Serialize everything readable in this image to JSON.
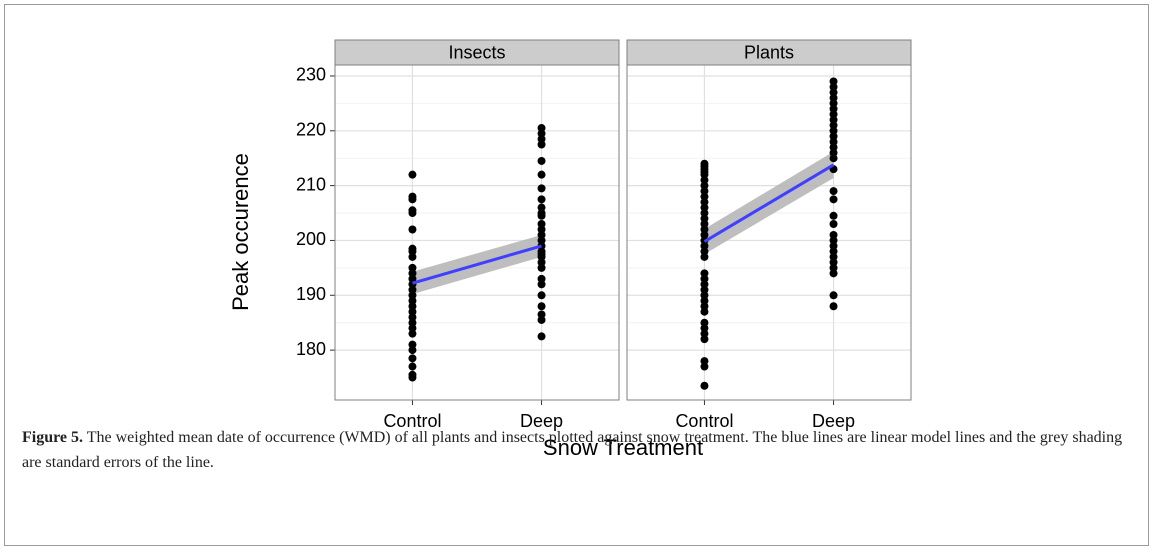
{
  "chart_data": [
    {
      "type": "strip",
      "title": "Insects",
      "categories": [
        "Control",
        "Deep"
      ],
      "points": [
        [
          212,
          208,
          207.5,
          205.5,
          205,
          202,
          198.5,
          198,
          197,
          195,
          194,
          193,
          192,
          191,
          190,
          189,
          188,
          187,
          186,
          185,
          184,
          183,
          181,
          180,
          178.5,
          177,
          175.5,
          175
        ],
        [
          220.5,
          219.5,
          218.5,
          217.5,
          214.5,
          212,
          209.5,
          207.5,
          206,
          205,
          204.5,
          203,
          202,
          201,
          200,
          199,
          198,
          197.5,
          197,
          196,
          195,
          193,
          192,
          190,
          188,
          186.5,
          185.5,
          182.5
        ]
      ],
      "point_color": "#000000",
      "fit": [
        192.2,
        199
      ],
      "se_lower": [
        190.2,
        197
      ],
      "se_upper": [
        194.3,
        201
      ],
      "fit_color": "#3f3fff",
      "se_color": "#b3b3b3",
      "ylim": [
        170.9,
        232
      ],
      "yticks": [
        180,
        190,
        200,
        210,
        220,
        230
      ],
      "show_yticks": true,
      "grid": true
    },
    {
      "type": "strip",
      "title": "Plants",
      "categories": [
        "Control",
        "Deep"
      ],
      "points": [
        [
          214,
          213.5,
          213,
          212.5,
          212,
          211,
          210,
          209,
          208,
          207,
          206,
          205,
          204,
          203,
          202,
          201,
          200,
          199,
          198,
          197,
          194,
          193,
          192,
          191,
          190,
          189,
          188,
          187,
          185,
          184,
          183,
          182,
          178,
          177,
          173.5
        ],
        [
          229,
          228,
          227,
          226,
          225,
          224,
          223,
          222,
          221,
          220,
          219,
          218,
          217,
          216,
          215,
          213,
          209,
          207.5,
          204.5,
          203,
          201,
          200,
          199,
          198,
          197,
          196,
          195,
          194,
          190,
          188
        ]
      ],
      "point_color": "#000000",
      "fit": [
        199.8,
        213.8
      ],
      "se_lower": [
        197.5,
        211.4
      ],
      "se_upper": [
        202.1,
        216.2
      ],
      "fit_color": "#3f3fff",
      "se_color": "#b3b3b3",
      "ylim": [
        170.9,
        232
      ],
      "yticks": [
        180,
        190,
        200,
        210,
        220,
        230
      ],
      "show_yticks": false,
      "grid": true
    }
  ],
  "y_label": "Peak occurence",
  "x_label": "Snow Treatment",
  "caption": {
    "label": "Figure 5.",
    "text": "The weighted mean date of occurrence (WMD) of all plants and insects plotted against snow treatment. The blue lines are linear model lines and the grey shading are standard errors of the line."
  }
}
